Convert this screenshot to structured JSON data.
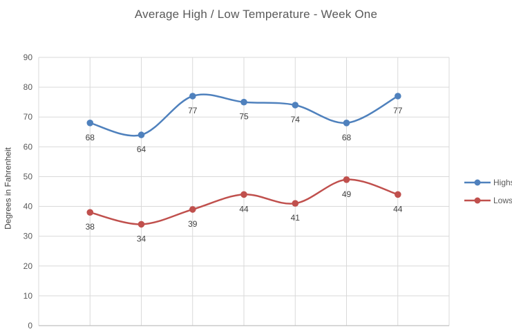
{
  "chart_data": {
    "type": "line",
    "title": "Average High / Low Temperature - Week One",
    "xlabel": "",
    "ylabel": "Degrees in Fahrenheit",
    "ylim": [
      0,
      90
    ],
    "ytick_step": 10,
    "x_gridline_intervals": 8,
    "grid": true,
    "smooth": true,
    "marker": "circle",
    "data_labels_position": "below",
    "legend_position": "right",
    "series": [
      {
        "name": "Highs",
        "values": [
          68,
          64,
          77,
          75,
          74,
          68,
          77
        ],
        "color": "#4F81BD"
      },
      {
        "name": "Lows",
        "values": [
          38,
          34,
          39,
          44,
          41,
          49,
          44
        ],
        "color": "#C0504D"
      }
    ],
    "colors": {
      "grid": "#D9D9D9",
      "axis": "#BFBFBF",
      "title_text": "#595959",
      "tick_text": "#595959",
      "label_text": "#404040",
      "background": "#FFFFFF"
    }
  }
}
